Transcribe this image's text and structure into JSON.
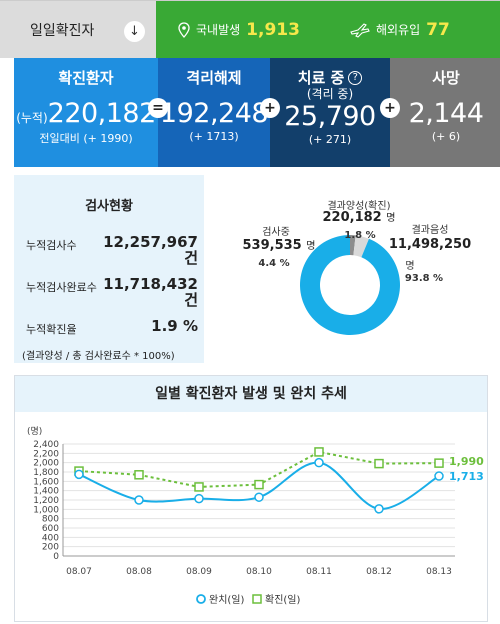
{
  "topbar": {
    "title": "일일확진자",
    "domestic_label": "국내발생",
    "domestic_value": "1,913",
    "overseas_label": "해외유입",
    "overseas_value": "77"
  },
  "stats": {
    "confirmed": {
      "title": "확진환자",
      "prefix": "(누적)",
      "value": "220,182",
      "delta_label": "전일대비",
      "delta": "(+ 1990)"
    },
    "released": {
      "title": "격리해제",
      "value": "192,248",
      "delta": "(+ 1713)"
    },
    "treating": {
      "title": "치료 중",
      "sub": "(격리 중)",
      "value": "25,790",
      "delta": "(+ 271)"
    },
    "deaths": {
      "title": "사망",
      "value": "2,144",
      "delta": "(+ 6)"
    },
    "op_equal": "=",
    "op_plus": "+"
  },
  "tests": {
    "title": "검사현황",
    "cum_tests_label": "누적검사수",
    "cum_tests_value": "12,257,967",
    "cum_tests_unit": "건",
    "completed_label": "누적검사완료수",
    "completed_value": "11,718,432",
    "completed_unit": "건",
    "rate_label": "누적확진율",
    "rate_value": "1.9 %",
    "note": "(결과양성 / 총 검사완료수 * 100%)"
  },
  "donut": {
    "positive_label": "결과양성(확진)",
    "positive_value": "220,182",
    "positive_unit": "명",
    "positive_pct": "1.8 %",
    "testing_label": "검사중",
    "testing_value": "539,535",
    "testing_unit": "명",
    "testing_pct": "4.4 %",
    "negative_label": "결과음성",
    "negative_value": "11,498,250",
    "negative_unit": "명",
    "negative_pct": "93.8 %",
    "colors": {
      "negative": "#19aee8",
      "testing": "#d9d9d9",
      "positive": "#8c8c8c"
    }
  },
  "chart": {
    "title": "일별 확진환자 발생 및 완치 추세",
    "unit": "(명)",
    "legend_released": "완치(일)",
    "legend_confirmed": "확진(일)",
    "released_end_label": "1,713",
    "confirmed_end_label": "1,990"
  },
  "chart_data": {
    "type": "line",
    "x": [
      "08.07",
      "08.08",
      "08.09",
      "08.10",
      "08.11",
      "08.12",
      "08.13"
    ],
    "ylim": [
      0,
      2400
    ],
    "yticks": [
      "0",
      "200",
      "400",
      "600",
      "800",
      "1,000",
      "1,200",
      "1,400",
      "1,600",
      "1,800",
      "2,000",
      "2,200",
      "2,400"
    ],
    "series": [
      {
        "name": "완치(일)",
        "color": "#19aee8",
        "values": [
          1750,
          1200,
          1230,
          1260,
          2000,
          1010,
          1713
        ]
      },
      {
        "name": "확진(일)",
        "color": "#6cbf3c",
        "values": [
          1820,
          1740,
          1480,
          1530,
          2230,
          1980,
          1990
        ]
      }
    ],
    "grid": true
  }
}
